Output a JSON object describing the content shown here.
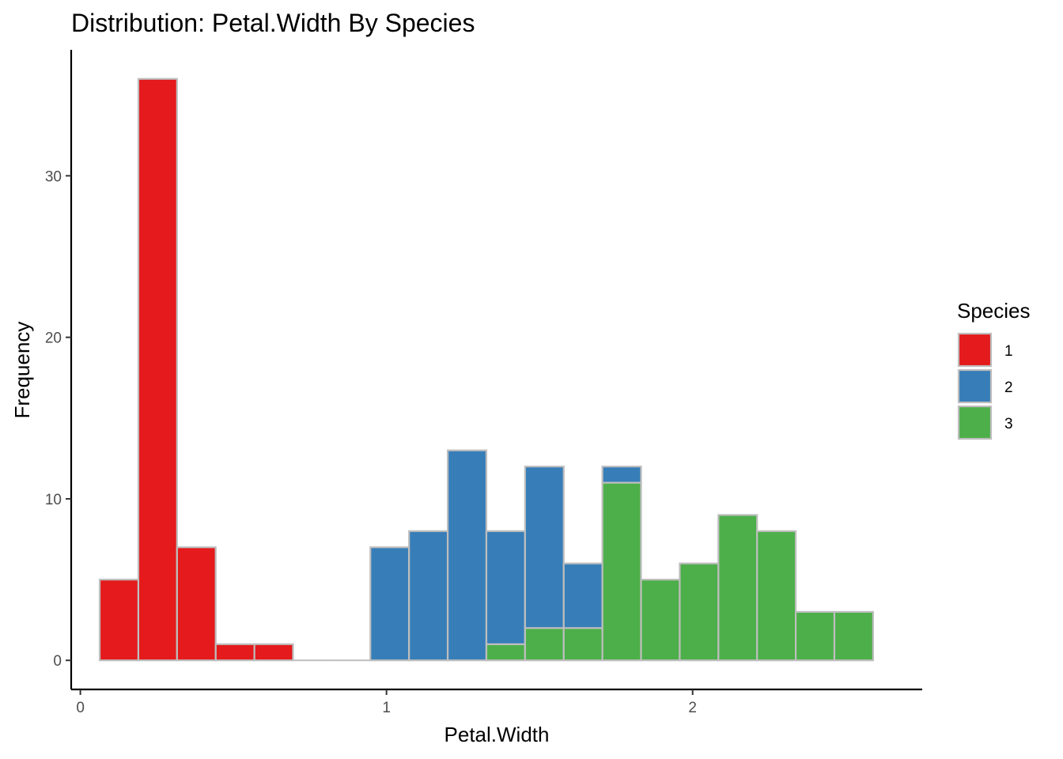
{
  "chart_data": {
    "type": "bar",
    "title": "Distribution: Petal.Width By Species",
    "xlabel": "Petal.Width",
    "ylabel": "Frequency",
    "xlim": [
      -0.03,
      2.75
    ],
    "ylim": [
      -1.8,
      37.8
    ],
    "x_ticks": [
      0,
      1,
      2
    ],
    "y_ticks": [
      0,
      10,
      20,
      30
    ],
    "bin_width": 0.1263,
    "bin_centers": [
      0.1263,
      0.2526,
      0.3789,
      0.5053,
      0.6316,
      0.7579,
      0.8842,
      1.0105,
      1.1368,
      1.2632,
      1.3895,
      1.5158,
      1.6421,
      1.7684,
      1.8947,
      2.0211,
      2.1474,
      2.2737,
      2.4,
      2.5263
    ],
    "stacked": true,
    "legend": {
      "title": "Species",
      "position": "right"
    },
    "series": [
      {
        "name": "3",
        "color": "#4DAF4A",
        "values": [
          0,
          0,
          0,
          0,
          0,
          0,
          0,
          0,
          0,
          0,
          1,
          2,
          2,
          11,
          5,
          6,
          9,
          8,
          3,
          3
        ]
      },
      {
        "name": "2",
        "color": "#377EB8",
        "values": [
          0,
          0,
          0,
          0,
          0,
          0,
          0,
          7,
          8,
          13,
          7,
          10,
          4,
          1,
          0,
          0,
          0,
          0,
          0,
          0
        ]
      },
      {
        "name": "1",
        "color": "#E41A1C",
        "values": [
          5,
          36,
          7,
          1,
          1,
          0,
          0,
          0,
          0,
          0,
          0,
          0,
          0,
          0,
          0,
          0,
          0,
          0,
          0,
          0
        ]
      }
    ],
    "legend_order": [
      "1",
      "2",
      "3"
    ],
    "bar_outline": "#BEBEBE"
  }
}
